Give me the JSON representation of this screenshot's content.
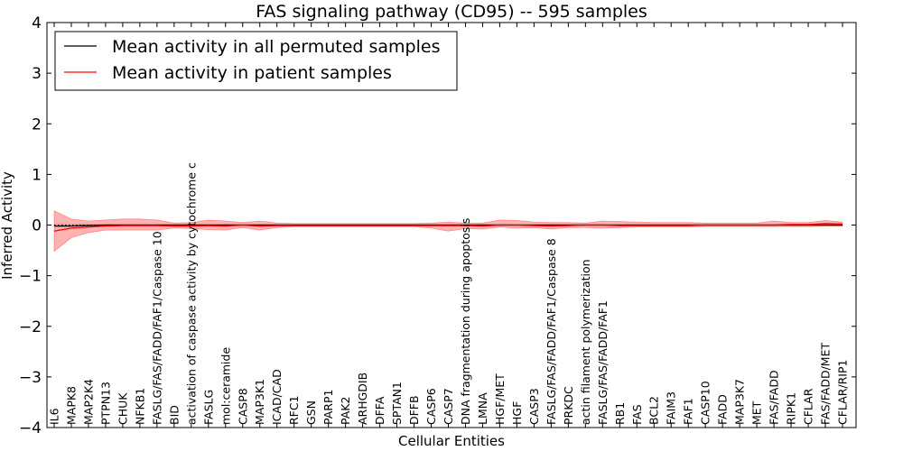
{
  "chart_data": {
    "type": "line",
    "title": "FAS signaling pathway (CD95) -- 595 samples",
    "xlabel": "Cellular Entities",
    "ylabel": "Inferred Activity",
    "ylim": [
      -4,
      4
    ],
    "yticks": [
      "−4",
      "−3",
      "−2",
      "−1",
      "0",
      "1",
      "2",
      "3",
      "4"
    ],
    "categories": [
      "IL6",
      "MAPK8",
      "MAP2K4",
      "PTPN13",
      "CHUK",
      "NFKB1",
      "FASLG/FAS/FADD/FAF1/Caspase 10",
      "BID",
      "activation of caspase activity by cytochrome c",
      "FASLG",
      "mol:ceramide",
      "CASP8",
      "MAP3K1",
      "ICAD/CAD",
      "RFC1",
      "GSN",
      "PARP1",
      "PAK2",
      "ARHGDIB",
      "DFFA",
      "SPTAN1",
      "DFFB",
      "CASP6",
      "CASP7",
      "DNA fragmentation during apoptosis",
      "LMNA",
      "HGF/MET",
      "HGF",
      "CASP3",
      "FASLG/FAS/FADD/FAF1/Caspase 8",
      "PRKDC",
      "actin filament polymerization",
      "FASLG/FAS/FADD/FAF1",
      "RB1",
      "FAS",
      "BCL2",
      "FAIM3",
      "FAF1",
      "CASP10",
      "FADD",
      "MAP3K7",
      "MET",
      "FAS/FADD",
      "RIPK1",
      "CFLAR",
      "FAS/FADD/MET",
      "CFLAR/RIP1"
    ],
    "series": [
      {
        "name": "Mean activity in all permuted samples",
        "color": "#000000",
        "values": [
          -0.02,
          -0.02,
          -0.01,
          0.0,
          0.0,
          0.0,
          0.0,
          0.0,
          0.0,
          0.0,
          0.0,
          0.0,
          0.0,
          0.0,
          0.0,
          0.0,
          0.0,
          0.0,
          0.0,
          0.0,
          0.0,
          0.0,
          0.0,
          0.0,
          0.0,
          0.0,
          0.0,
          0.0,
          0.0,
          0.0,
          0.0,
          0.0,
          0.0,
          0.0,
          0.0,
          0.0,
          0.0,
          0.0,
          0.0,
          0.0,
          0.0,
          0.0,
          0.0,
          0.0,
          0.0,
          0.0,
          0.0
        ],
        "band_lower": [
          -0.03,
          -0.03,
          -0.03,
          -0.03,
          -0.03,
          -0.03,
          -0.03,
          -0.03,
          -0.03,
          -0.03,
          -0.03,
          -0.03,
          -0.03,
          -0.03,
          -0.03,
          -0.03,
          -0.03,
          -0.03,
          -0.03,
          -0.03,
          -0.03,
          -0.03,
          -0.03,
          -0.03,
          -0.03,
          -0.03,
          -0.03,
          -0.03,
          -0.03,
          -0.03,
          -0.03,
          -0.03,
          -0.03,
          -0.03,
          -0.03,
          -0.03,
          -0.03,
          -0.03,
          -0.03,
          -0.03,
          -0.03,
          -0.03,
          -0.03,
          -0.03,
          -0.03,
          -0.03,
          -0.03
        ],
        "band_upper": [
          0.03,
          0.03,
          0.03,
          0.03,
          0.03,
          0.03,
          0.03,
          0.03,
          0.03,
          0.03,
          0.03,
          0.03,
          0.03,
          0.03,
          0.03,
          0.03,
          0.03,
          0.03,
          0.03,
          0.03,
          0.03,
          0.03,
          0.03,
          0.03,
          0.03,
          0.03,
          0.03,
          0.03,
          0.03,
          0.03,
          0.03,
          0.03,
          0.03,
          0.03,
          0.03,
          0.03,
          0.03,
          0.03,
          0.03,
          0.03,
          0.03,
          0.03,
          0.03,
          0.03,
          0.03,
          0.03,
          0.03
        ]
      },
      {
        "name": "Mean activity in patient samples",
        "color": "#ff0000",
        "values": [
          -0.12,
          -0.06,
          -0.04,
          -0.02,
          -0.01,
          -0.01,
          -0.01,
          -0.02,
          -0.02,
          -0.01,
          -0.02,
          0.0,
          -0.02,
          -0.01,
          -0.01,
          -0.01,
          -0.01,
          -0.01,
          -0.01,
          -0.01,
          -0.01,
          -0.01,
          -0.01,
          -0.01,
          -0.01,
          -0.02,
          0.0,
          0.0,
          -0.01,
          -0.02,
          -0.01,
          0.0,
          0.0,
          -0.01,
          -0.01,
          -0.01,
          -0.01,
          -0.01,
          0.0,
          0.0,
          0.0,
          0.0,
          0.0,
          0.01,
          0.01,
          0.03,
          0.02
        ],
        "band_lower": [
          -0.52,
          -0.25,
          -0.15,
          -0.1,
          -0.1,
          -0.1,
          -0.1,
          -0.06,
          -0.07,
          -0.09,
          -0.1,
          -0.05,
          -0.1,
          -0.05,
          -0.03,
          -0.03,
          -0.03,
          -0.03,
          -0.03,
          -0.03,
          -0.03,
          -0.03,
          -0.06,
          -0.12,
          -0.07,
          -0.08,
          -0.04,
          -0.06,
          -0.05,
          -0.08,
          -0.05,
          -0.05,
          -0.06,
          -0.05,
          -0.04,
          -0.04,
          -0.04,
          -0.04,
          -0.03,
          -0.03,
          -0.03,
          -0.03,
          -0.03,
          -0.03,
          -0.03,
          -0.02,
          -0.02
        ],
        "band_upper": [
          0.28,
          0.12,
          0.08,
          0.1,
          0.12,
          0.12,
          0.1,
          0.04,
          0.05,
          0.1,
          0.08,
          0.05,
          0.08,
          0.04,
          0.03,
          0.03,
          0.03,
          0.03,
          0.03,
          0.03,
          0.03,
          0.03,
          0.04,
          0.06,
          0.04,
          0.04,
          0.1,
          0.09,
          0.06,
          0.05,
          0.05,
          0.04,
          0.08,
          0.07,
          0.06,
          0.05,
          0.05,
          0.05,
          0.04,
          0.04,
          0.04,
          0.04,
          0.08,
          0.05,
          0.05,
          0.09,
          0.06
        ]
      }
    ],
    "legend_position": "top-left"
  }
}
